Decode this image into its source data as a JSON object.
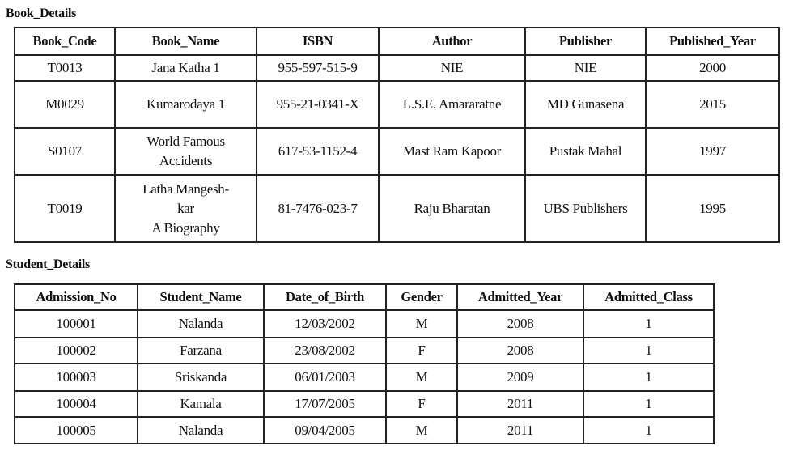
{
  "book_details": {
    "title": "Book_Details",
    "columns": [
      "Book_Code",
      "Book_Name",
      "ISBN",
      "Author",
      "Publisher",
      "Published_Year"
    ],
    "rows": [
      [
        "T0013",
        "Jana Katha 1",
        "955-597-515-9",
        "NIE",
        "NIE",
        "2000"
      ],
      [
        "M0029",
        "Kumarodaya 1",
        "955-21-0341-X",
        "L.S.E. Amararatne",
        "MD Gunasena",
        "2015"
      ],
      [
        "S0107",
        "World Famous\nAccidents",
        "617-53-1152-4",
        "Mast Ram Kapoor",
        "Pustak Mahal",
        "1997"
      ],
      [
        "T0019",
        "Latha Mangesh-\nkar\nA Biography",
        "81-7476-023-7",
        "Raju Bharatan",
        "UBS Publishers",
        "1995"
      ]
    ]
  },
  "student_details": {
    "title": "Student_Details",
    "columns": [
      "Admission_No",
      "Student_Name",
      "Date_of_Birth",
      "Gender",
      "Admitted_Year",
      "Admitted_Class"
    ],
    "rows": [
      [
        "100001",
        "Nalanda",
        "12/03/2002",
        "M",
        "2008",
        "1"
      ],
      [
        "100002",
        "Farzana",
        "23/08/2002",
        "F",
        "2008",
        "1"
      ],
      [
        "100003",
        "Sriskanda",
        "06/01/2003",
        "M",
        "2009",
        "1"
      ],
      [
        "100004",
        "Kamala",
        "17/07/2005",
        "F",
        "2011",
        "1"
      ],
      [
        "100005",
        "Nalanda",
        "09/04/2005",
        "M",
        "2011",
        "1"
      ]
    ]
  }
}
